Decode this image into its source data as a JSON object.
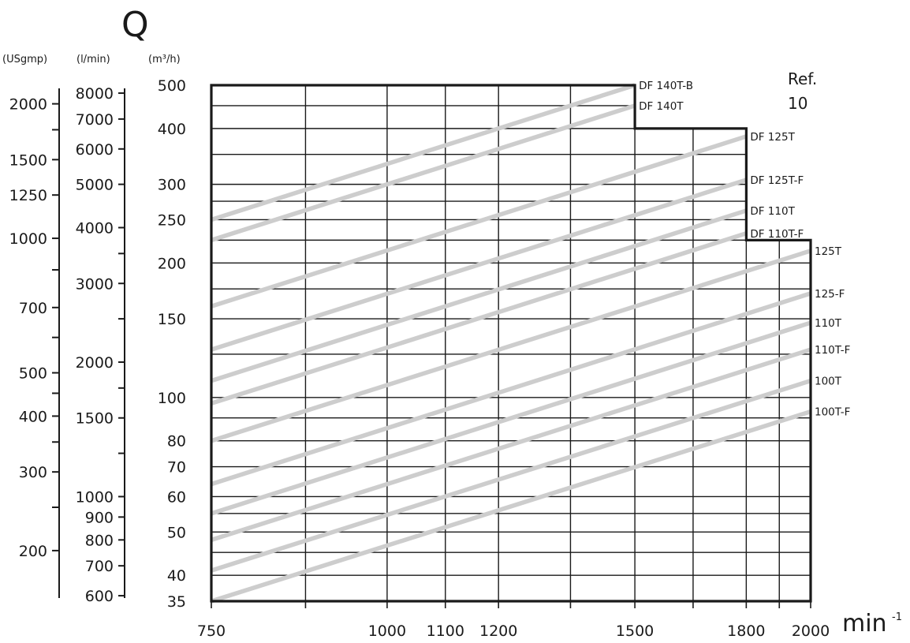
{
  "chart_data": {
    "type": "line",
    "reference": [
      "Ref.",
      "10"
    ],
    "y_title": "Q",
    "y_units": [
      "(USgmp)",
      "(l/min)",
      "(m³/h)"
    ],
    "x_unit": "min",
    "x_unit_exp": "-1",
    "xscale": "log",
    "yscale": "log",
    "xlim": [
      750,
      2000
    ],
    "ylim": [
      35,
      500
    ],
    "x_ticks": [
      750,
      1000,
      1100,
      1200,
      1500,
      1800,
      2000
    ],
    "x_gridlines": [
      750,
      875,
      1000,
      1100,
      1200,
      1350,
      1500,
      1650,
      1800,
      1900,
      2000
    ],
    "y_ticks_m3h": [
      35,
      40,
      50,
      60,
      70,
      80,
      100,
      150,
      200,
      250,
      300,
      400,
      500
    ],
    "y_gridlines_m3h": [
      35,
      40,
      45,
      50,
      55,
      60,
      70,
      80,
      90,
      100,
      125,
      150,
      175,
      200,
      225,
      250,
      275,
      300,
      350,
      400,
      450,
      500
    ],
    "y_ticks_lmin": [
      600,
      700,
      800,
      900,
      1000,
      1500,
      2000,
      3000,
      4000,
      5000,
      6000,
      7000,
      8000
    ],
    "y_minor_lmin": [
      1250,
      1750,
      2500,
      3500
    ],
    "y_ticks_usgpm": [
      200,
      300,
      400,
      500,
      700,
      1000,
      1250,
      1500,
      2000
    ],
    "y_minor_usgpm": [
      250,
      350,
      450,
      600,
      850,
      1750
    ],
    "limit_envelope": [
      [
        750,
        500
      ],
      [
        1500,
        500
      ],
      [
        1500,
        400
      ],
      [
        1800,
        400
      ],
      [
        1800,
        225
      ],
      [
        2000,
        225
      ],
      [
        2000,
        35
      ],
      [
        750,
        35
      ]
    ],
    "series": [
      {
        "name": "DF 140T-B",
        "x": [
          750,
          1500
        ],
        "y": [
          250,
          500
        ]
      },
      {
        "name": "DF 140T",
        "x": [
          750,
          1500
        ],
        "y": [
          225,
          450
        ]
      },
      {
        "name": "DF 125T",
        "x": [
          750,
          1800
        ],
        "y": [
          160,
          384
        ]
      },
      {
        "name": "DF 125T-F",
        "x": [
          750,
          1800
        ],
        "y": [
          128,
          307
        ]
      },
      {
        "name": "DF 110T",
        "x": [
          750,
          1800
        ],
        "y": [
          109,
          262
        ]
      },
      {
        "name": "DF 110T-F",
        "x": [
          750,
          1800
        ],
        "y": [
          97,
          233
        ]
      },
      {
        "name": "125T",
        "x": [
          750,
          2000
        ],
        "y": [
          80,
          213
        ]
      },
      {
        "name": "125-F",
        "x": [
          750,
          2000
        ],
        "y": [
          64,
          171
        ]
      },
      {
        "name": "110T",
        "x": [
          750,
          2000
        ],
        "y": [
          55,
          147
        ]
      },
      {
        "name": "110T-F",
        "x": [
          750,
          2000
        ],
        "y": [
          48,
          128
        ]
      },
      {
        "name": "100T",
        "x": [
          750,
          2000
        ],
        "y": [
          41,
          109
        ]
      },
      {
        "name": "100T-F",
        "x": [
          750,
          2000
        ],
        "y": [
          35,
          93
        ]
      }
    ]
  }
}
